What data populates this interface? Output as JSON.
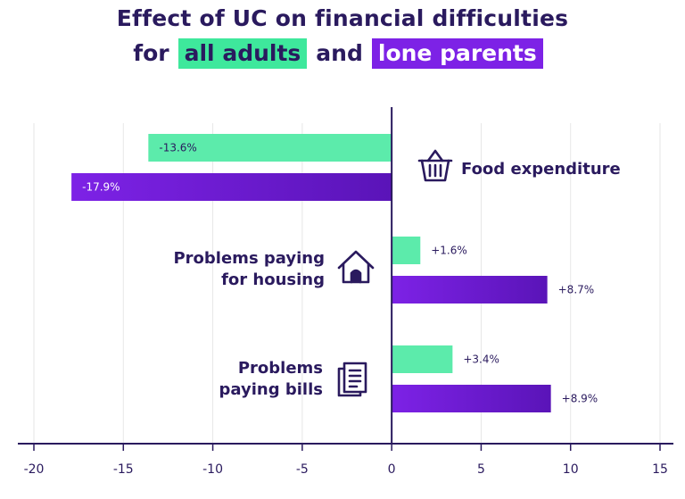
{
  "legend": {
    "prefix": "for",
    "series_a": "all adults",
    "joiner": "and",
    "series_b": "lone parents"
  },
  "colors": {
    "all_adults": "#3ee89c",
    "all_adults_fade": "#b8f5d8",
    "lone_parents": "#7d22e6",
    "lone_parents_dark": "#5a14b8",
    "text": "#2a1a5e",
    "grid": "#e6e6e6",
    "axis": "#2a1a5e"
  },
  "icons": [
    "basket-icon",
    "house-icon",
    "bills-icon"
  ],
  "chart_data": {
    "type": "bar",
    "orientation": "horizontal",
    "title": "Effect of UC on financial difficulties",
    "categories": [
      {
        "lines": [
          "Food expenditure"
        ],
        "icon": "basket-icon"
      },
      {
        "lines": [
          "Problems paying",
          "for housing"
        ],
        "icon": "house-icon"
      },
      {
        "lines": [
          "Problems",
          "paying bills"
        ],
        "icon": "bills-icon"
      }
    ],
    "series": [
      {
        "name": "all adults",
        "values": [
          -13.6,
          1.6,
          3.4
        ],
        "labels": [
          "-13.6%",
          "+1.6%",
          "+3.4%"
        ]
      },
      {
        "name": "lone parents",
        "values": [
          -17.9,
          8.7,
          8.9
        ],
        "labels": [
          "-17.9%",
          "+8.7%",
          "+8.9%"
        ]
      }
    ],
    "xlim": [
      -20,
      15
    ],
    "xticks": [
      -20,
      -15,
      -10,
      -5,
      0,
      5,
      10,
      15
    ],
    "xlabel": "",
    "ylabel": "",
    "grid": true,
    "legend": "title"
  }
}
